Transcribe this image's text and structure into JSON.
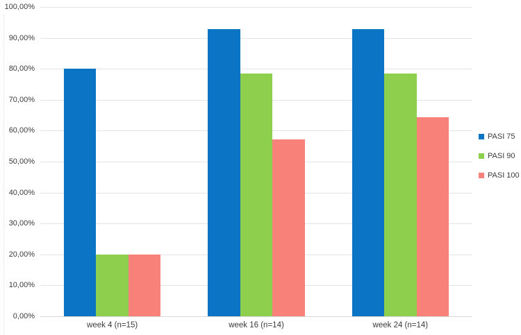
{
  "chart_data": {
    "type": "bar",
    "title": "",
    "xlabel": "",
    "ylabel": "",
    "categories": [
      "week 4 (n=15)",
      "week 16 (n=14)",
      "week 24 (n=14)"
    ],
    "series": [
      {
        "name": "PASI 75",
        "color": "#0b74c4",
        "values": [
          80.0,
          92.86,
          92.86
        ]
      },
      {
        "name": "PASI 90",
        "color": "#8ed04d",
        "values": [
          20.0,
          78.57,
          78.57
        ]
      },
      {
        "name": "PASI 100",
        "color": "#f8817a",
        "values": [
          20.0,
          57.14,
          64.29
        ]
      }
    ],
    "ylim": [
      0,
      100
    ],
    "ytick_step": 10,
    "ytick_labels": [
      "0,00%",
      "10,00%",
      "20,00%",
      "30,00%",
      "40,00%",
      "50,00%",
      "60,00%",
      "70,00%",
      "80,00%",
      "90,00%",
      "100,00%"
    ],
    "grid": true,
    "legend_position": "right"
  },
  "colors": {
    "gridline": "#e3e3e3",
    "axis_line": "#d6d6d6",
    "text": "#3b3b3b",
    "background": "#ffffff"
  }
}
